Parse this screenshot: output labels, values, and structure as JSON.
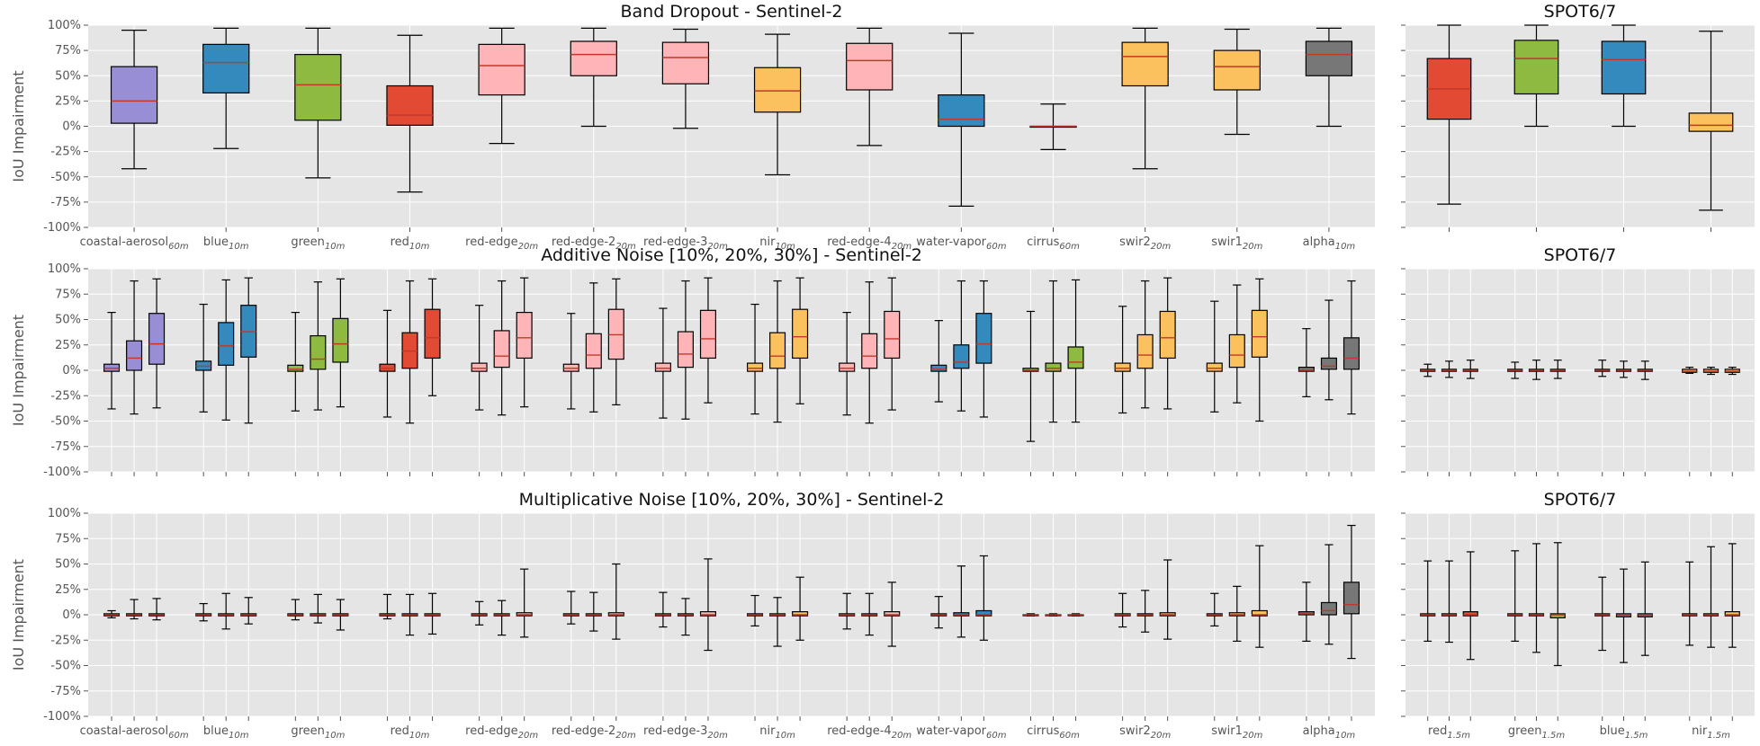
{
  "chart_data": [
    {
      "type": "box",
      "title": "Band Dropout - Sentinel-2",
      "ylabel": "IoU Impairment",
      "ylim": [
        -100,
        100
      ],
      "yticks": [
        "100%",
        "75%",
        "50%",
        "25%",
        "0%",
        "-25%",
        "-50%",
        "-75%",
        "-100%"
      ],
      "grid": true,
      "categories": [
        {
          "name": "coastal-aerosol",
          "sub": "60m"
        },
        {
          "name": "blue",
          "sub": "10m"
        },
        {
          "name": "green",
          "sub": "10m"
        },
        {
          "name": "red",
          "sub": "10m"
        },
        {
          "name": "red-edge",
          "sub": "20m"
        },
        {
          "name": "red-edge-2",
          "sub": "20m"
        },
        {
          "name": "red-edge-3",
          "sub": "20m"
        },
        {
          "name": "nir",
          "sub": "10m"
        },
        {
          "name": "red-edge-4",
          "sub": "20m"
        },
        {
          "name": "water-vapor",
          "sub": "60m"
        },
        {
          "name": "cirrus",
          "sub": "60m"
        },
        {
          "name": "swir2",
          "sub": "20m"
        },
        {
          "name": "swir1",
          "sub": "20m"
        },
        {
          "name": "alpha",
          "sub": "10m"
        }
      ],
      "colors": [
        "#988ed5",
        "#348abd",
        "#8eba42",
        "#e24a33",
        "#ffb5b8",
        "#ffb5b8",
        "#ffb5b8",
        "#fbc15e",
        "#ffb5b8",
        "#348abd",
        "#e24a33",
        "#fbc15e",
        "#fbc15e",
        "#777777"
      ],
      "boxes": [
        [
          [
            -42,
            3,
            25,
            59,
            95
          ]
        ],
        [
          [
            -22,
            33,
            63,
            81,
            97
          ]
        ],
        [
          [
            -51,
            6,
            41,
            71,
            97
          ]
        ],
        [
          [
            -65,
            1,
            11,
            40,
            90
          ]
        ],
        [
          [
            -17,
            31,
            60,
            81,
            97
          ]
        ],
        [
          [
            0,
            50,
            71,
            84,
            97
          ]
        ],
        [
          [
            -2,
            42,
            68,
            83,
            96
          ]
        ],
        [
          [
            -48,
            14,
            35,
            58,
            91
          ]
        ],
        [
          [
            -19,
            36,
            65,
            82,
            97
          ]
        ],
        [
          [
            -79,
            0,
            7,
            31,
            92
          ]
        ],
        [
          [
            -23,
            0,
            0,
            0,
            22
          ]
        ],
        [
          [
            -42,
            40,
            69,
            83,
            97
          ]
        ],
        [
          [
            -8,
            36,
            59,
            75,
            96
          ]
        ],
        [
          [
            0,
            50,
            71,
            84,
            97
          ]
        ]
      ]
    },
    {
      "type": "box",
      "title": "SPOT6/7",
      "ylim": [
        -100,
        100
      ],
      "grid": true,
      "categories": [],
      "colors": [
        "#e24a33",
        "#8eba42",
        "#348abd",
        "#fbc15e"
      ],
      "boxes": [
        [
          [
            -77,
            7,
            37,
            67,
            100
          ]
        ],
        [
          [
            0,
            32,
            67,
            85,
            100
          ]
        ],
        [
          [
            0,
            32,
            66,
            84,
            100
          ]
        ],
        [
          [
            -83,
            -5,
            1,
            13,
            94
          ]
        ]
      ]
    },
    {
      "type": "box",
      "title": "Additive Noise [10%, 20%, 30%] - Sentinel-2",
      "ylabel": "IoU Impairment",
      "ylim": [
        -100,
        100
      ],
      "yticks": [
        "100%",
        "75%",
        "50%",
        "25%",
        "0%",
        "-25%",
        "-50%",
        "-75%",
        "-100%"
      ],
      "grid": true,
      "categories": [],
      "colors": [
        "#988ed5",
        "#348abd",
        "#8eba42",
        "#e24a33",
        "#ffb5b8",
        "#ffb5b8",
        "#ffb5b8",
        "#fbc15e",
        "#ffb5b8",
        "#348abd",
        "#8eba42",
        "#fbc15e",
        "#fbc15e",
        "#777777"
      ],
      "boxes": [
        [
          [
            -38,
            -1,
            2,
            6,
            57
          ],
          [
            -43,
            0,
            12,
            29,
            88
          ],
          [
            -37,
            6,
            26,
            56,
            90
          ]
        ],
        [
          [
            -41,
            0,
            4,
            9,
            65
          ],
          [
            -49,
            5,
            24,
            47,
            89
          ],
          [
            -52,
            13,
            38,
            64,
            91
          ]
        ],
        [
          [
            -40,
            -1,
            1,
            5,
            57
          ],
          [
            -39,
            1,
            11,
            34,
            87
          ],
          [
            -36,
            8,
            26,
            51,
            90
          ]
        ],
        [
          [
            -46,
            -1,
            2,
            6,
            59
          ],
          [
            -52,
            2,
            19,
            37,
            88
          ],
          [
            -25,
            12,
            32,
            60,
            90
          ]
        ],
        [
          [
            -39,
            -1,
            2,
            7,
            64
          ],
          [
            -44,
            3,
            14,
            39,
            88
          ],
          [
            -36,
            12,
            32,
            57,
            91
          ]
        ],
        [
          [
            -38,
            -1,
            2,
            6,
            56
          ],
          [
            -41,
            2,
            15,
            36,
            86
          ],
          [
            -34,
            11,
            35,
            60,
            90
          ]
        ],
        [
          [
            -47,
            -1,
            2,
            7,
            61
          ],
          [
            -48,
            3,
            16,
            38,
            88
          ],
          [
            -32,
            12,
            31,
            59,
            91
          ]
        ],
        [
          [
            -43,
            -1,
            2,
            7,
            65
          ],
          [
            -51,
            2,
            14,
            37,
            88
          ],
          [
            -33,
            12,
            33,
            60,
            91
          ]
        ],
        [
          [
            -44,
            -1,
            2,
            7,
            57
          ],
          [
            -52,
            2,
            14,
            36,
            87
          ],
          [
            -39,
            12,
            31,
            58,
            91
          ]
        ],
        [
          [
            -31,
            -1,
            1,
            5,
            49
          ],
          [
            -40,
            2,
            8,
            25,
            88
          ],
          [
            -46,
            7,
            26,
            56,
            88
          ]
        ],
        [
          [
            -70,
            -1,
            0,
            2,
            58
          ],
          [
            -51,
            -1,
            2,
            7,
            88
          ],
          [
            -51,
            2,
            8,
            23,
            89
          ]
        ],
        [
          [
            -42,
            -1,
            2,
            7,
            63
          ],
          [
            -37,
            2,
            15,
            35,
            88
          ],
          [
            -38,
            12,
            32,
            58,
            91
          ]
        ],
        [
          [
            -41,
            -1,
            2,
            7,
            68
          ],
          [
            -32,
            3,
            15,
            35,
            84
          ],
          [
            -50,
            13,
            33,
            59,
            90
          ]
        ],
        [
          [
            -26,
            -1,
            0,
            3,
            41
          ],
          [
            -29,
            1,
            4,
            12,
            69
          ],
          [
            -43,
            1,
            12,
            32,
            88
          ]
        ]
      ]
    },
    {
      "type": "box",
      "title": "SPOT6/7",
      "ylim": [
        -100,
        100
      ],
      "grid": true,
      "categories": [],
      "colors": [
        "#e24a33",
        "#8eba42",
        "#348abd",
        "#fbc15e"
      ],
      "boxes": [
        [
          [
            -6,
            -1,
            0,
            1,
            6
          ],
          [
            -7,
            -1,
            0,
            1,
            9
          ],
          [
            -8,
            -1,
            0,
            1,
            10
          ]
        ],
        [
          [
            -8,
            -1,
            0,
            1,
            8
          ],
          [
            -9,
            -1,
            0,
            1,
            10
          ],
          [
            -8,
            -1,
            0,
            1,
            10
          ]
        ],
        [
          [
            -6,
            -1,
            0,
            1,
            10
          ],
          [
            -7,
            -1,
            0,
            1,
            9
          ],
          [
            -9,
            -1,
            0,
            1,
            9
          ]
        ],
        [
          [
            -3,
            -2,
            -1,
            1,
            3
          ],
          [
            -4,
            -2,
            -1,
            1,
            3
          ],
          [
            -4,
            -2,
            -1,
            1,
            3
          ]
        ]
      ]
    },
    {
      "type": "box",
      "title": "Multiplicative Noise [10%, 20%, 30%] - Sentinel-2",
      "ylabel": "IoU Impairment",
      "ylim": [
        -100,
        100
      ],
      "yticks": [
        "100%",
        "75%",
        "50%",
        "25%",
        "0%",
        "-25%",
        "-50%",
        "-75%",
        "-100%"
      ],
      "grid": true,
      "categories": [
        {
          "name": "coastal-aerosol",
          "sub": "60m"
        },
        {
          "name": "blue",
          "sub": "10m"
        },
        {
          "name": "green",
          "sub": "10m"
        },
        {
          "name": "red",
          "sub": "10m"
        },
        {
          "name": "red-edge",
          "sub": "20m"
        },
        {
          "name": "red-edge-2",
          "sub": "20m"
        },
        {
          "name": "red-edge-3",
          "sub": "20m"
        },
        {
          "name": "nir",
          "sub": "10m"
        },
        {
          "name": "red-edge-4",
          "sub": "20m"
        },
        {
          "name": "water-vapor",
          "sub": "60m"
        },
        {
          "name": "cirrus",
          "sub": "60m"
        },
        {
          "name": "swir2",
          "sub": "20m"
        },
        {
          "name": "swir1",
          "sub": "20m"
        },
        {
          "name": "alpha",
          "sub": "10m"
        }
      ],
      "colors": [
        "#988ed5",
        "#348abd",
        "#8eba42",
        "#e24a33",
        "#ffb5b8",
        "#ffb5b8",
        "#ffb5b8",
        "#fbc15e",
        "#ffb5b8",
        "#348abd",
        "#e24a33",
        "#fbc15e",
        "#fbc15e",
        "#777777"
      ],
      "boxes": [
        [
          [
            -3,
            -1,
            0,
            1,
            4
          ],
          [
            -4,
            -1,
            0,
            1,
            15
          ],
          [
            -5,
            -1,
            0,
            1,
            16
          ]
        ],
        [
          [
            -6,
            -1,
            0,
            1,
            11
          ],
          [
            -14,
            -1,
            0,
            1,
            21
          ],
          [
            -9,
            -1,
            0,
            1,
            17
          ]
        ],
        [
          [
            -5,
            -1,
            0,
            1,
            15
          ],
          [
            -8,
            -1,
            0,
            1,
            20
          ],
          [
            -15,
            -1,
            0,
            1,
            15
          ]
        ],
        [
          [
            -4,
            -1,
            0,
            1,
            20
          ],
          [
            -20,
            -1,
            0,
            1,
            20
          ],
          [
            -19,
            -1,
            0,
            1,
            21
          ]
        ],
        [
          [
            -10,
            -1,
            0,
            1,
            13
          ],
          [
            -20,
            -1,
            0,
            1,
            14
          ],
          [
            -22,
            -1,
            0,
            2,
            45
          ]
        ],
        [
          [
            -9,
            -1,
            0,
            1,
            23
          ],
          [
            -16,
            -1,
            0,
            1,
            22
          ],
          [
            -24,
            -1,
            0,
            2,
            50
          ]
        ],
        [
          [
            -12,
            -1,
            0,
            1,
            22
          ],
          [
            -20,
            -1,
            0,
            1,
            16
          ],
          [
            -35,
            -1,
            0,
            3,
            55
          ]
        ],
        [
          [
            -11,
            -1,
            0,
            1,
            19
          ],
          [
            -31,
            -1,
            0,
            1,
            17
          ],
          [
            -25,
            -1,
            0,
            3,
            37
          ]
        ],
        [
          [
            -14,
            -1,
            0,
            1,
            21
          ],
          [
            -20,
            -1,
            0,
            1,
            21
          ],
          [
            -31,
            -1,
            0,
            3,
            32
          ]
        ],
        [
          [
            -13,
            -1,
            0,
            1,
            18
          ],
          [
            -22,
            -1,
            0,
            2,
            48
          ],
          [
            -25,
            -1,
            0,
            4,
            58
          ]
        ],
        [
          [
            -1,
            0,
            0,
            0,
            1
          ],
          [
            -1,
            0,
            0,
            0,
            1
          ],
          [
            -1,
            0,
            0,
            0,
            1
          ]
        ],
        [
          [
            -12,
            -1,
            0,
            1,
            21
          ],
          [
            -17,
            -1,
            0,
            1,
            24
          ],
          [
            -24,
            -1,
            0,
            2,
            54
          ]
        ],
        [
          [
            -11,
            -1,
            0,
            1,
            21
          ],
          [
            -26,
            -1,
            0,
            2,
            28
          ],
          [
            -32,
            -1,
            0,
            4,
            68
          ]
        ],
        [
          [
            -26,
            0,
            1,
            3,
            32
          ],
          [
            -29,
            0,
            4,
            12,
            69
          ],
          [
            -43,
            1,
            10,
            32,
            88
          ]
        ]
      ]
    },
    {
      "type": "box",
      "title": "SPOT6/7",
      "ylim": [
        -100,
        100
      ],
      "grid": true,
      "categories": [
        {
          "name": "red",
          "sub": "1.5m"
        },
        {
          "name": "green",
          "sub": "1.5m"
        },
        {
          "name": "blue",
          "sub": "1.5m"
        },
        {
          "name": "nir",
          "sub": "1.5m"
        }
      ],
      "colors": [
        "#e24a33",
        "#8eba42",
        "#348abd",
        "#fbc15e"
      ],
      "boxes": [
        [
          [
            -26,
            -1,
            0,
            1,
            53
          ],
          [
            -27,
            -1,
            0,
            1,
            53
          ],
          [
            -44,
            -1,
            0,
            3,
            62
          ]
        ],
        [
          [
            -26,
            -1,
            0,
            1,
            63
          ],
          [
            -37,
            -1,
            0,
            1,
            70
          ],
          [
            -50,
            -3,
            0,
            1,
            71
          ]
        ],
        [
          [
            -35,
            -1,
            0,
            1,
            37
          ],
          [
            -47,
            -2,
            0,
            1,
            45
          ],
          [
            -40,
            -2,
            0,
            1,
            52
          ]
        ],
        [
          [
            -30,
            -1,
            0,
            1,
            52
          ],
          [
            -32,
            -1,
            0,
            1,
            67
          ],
          [
            -32,
            -1,
            0,
            3,
            70
          ]
        ]
      ]
    }
  ]
}
